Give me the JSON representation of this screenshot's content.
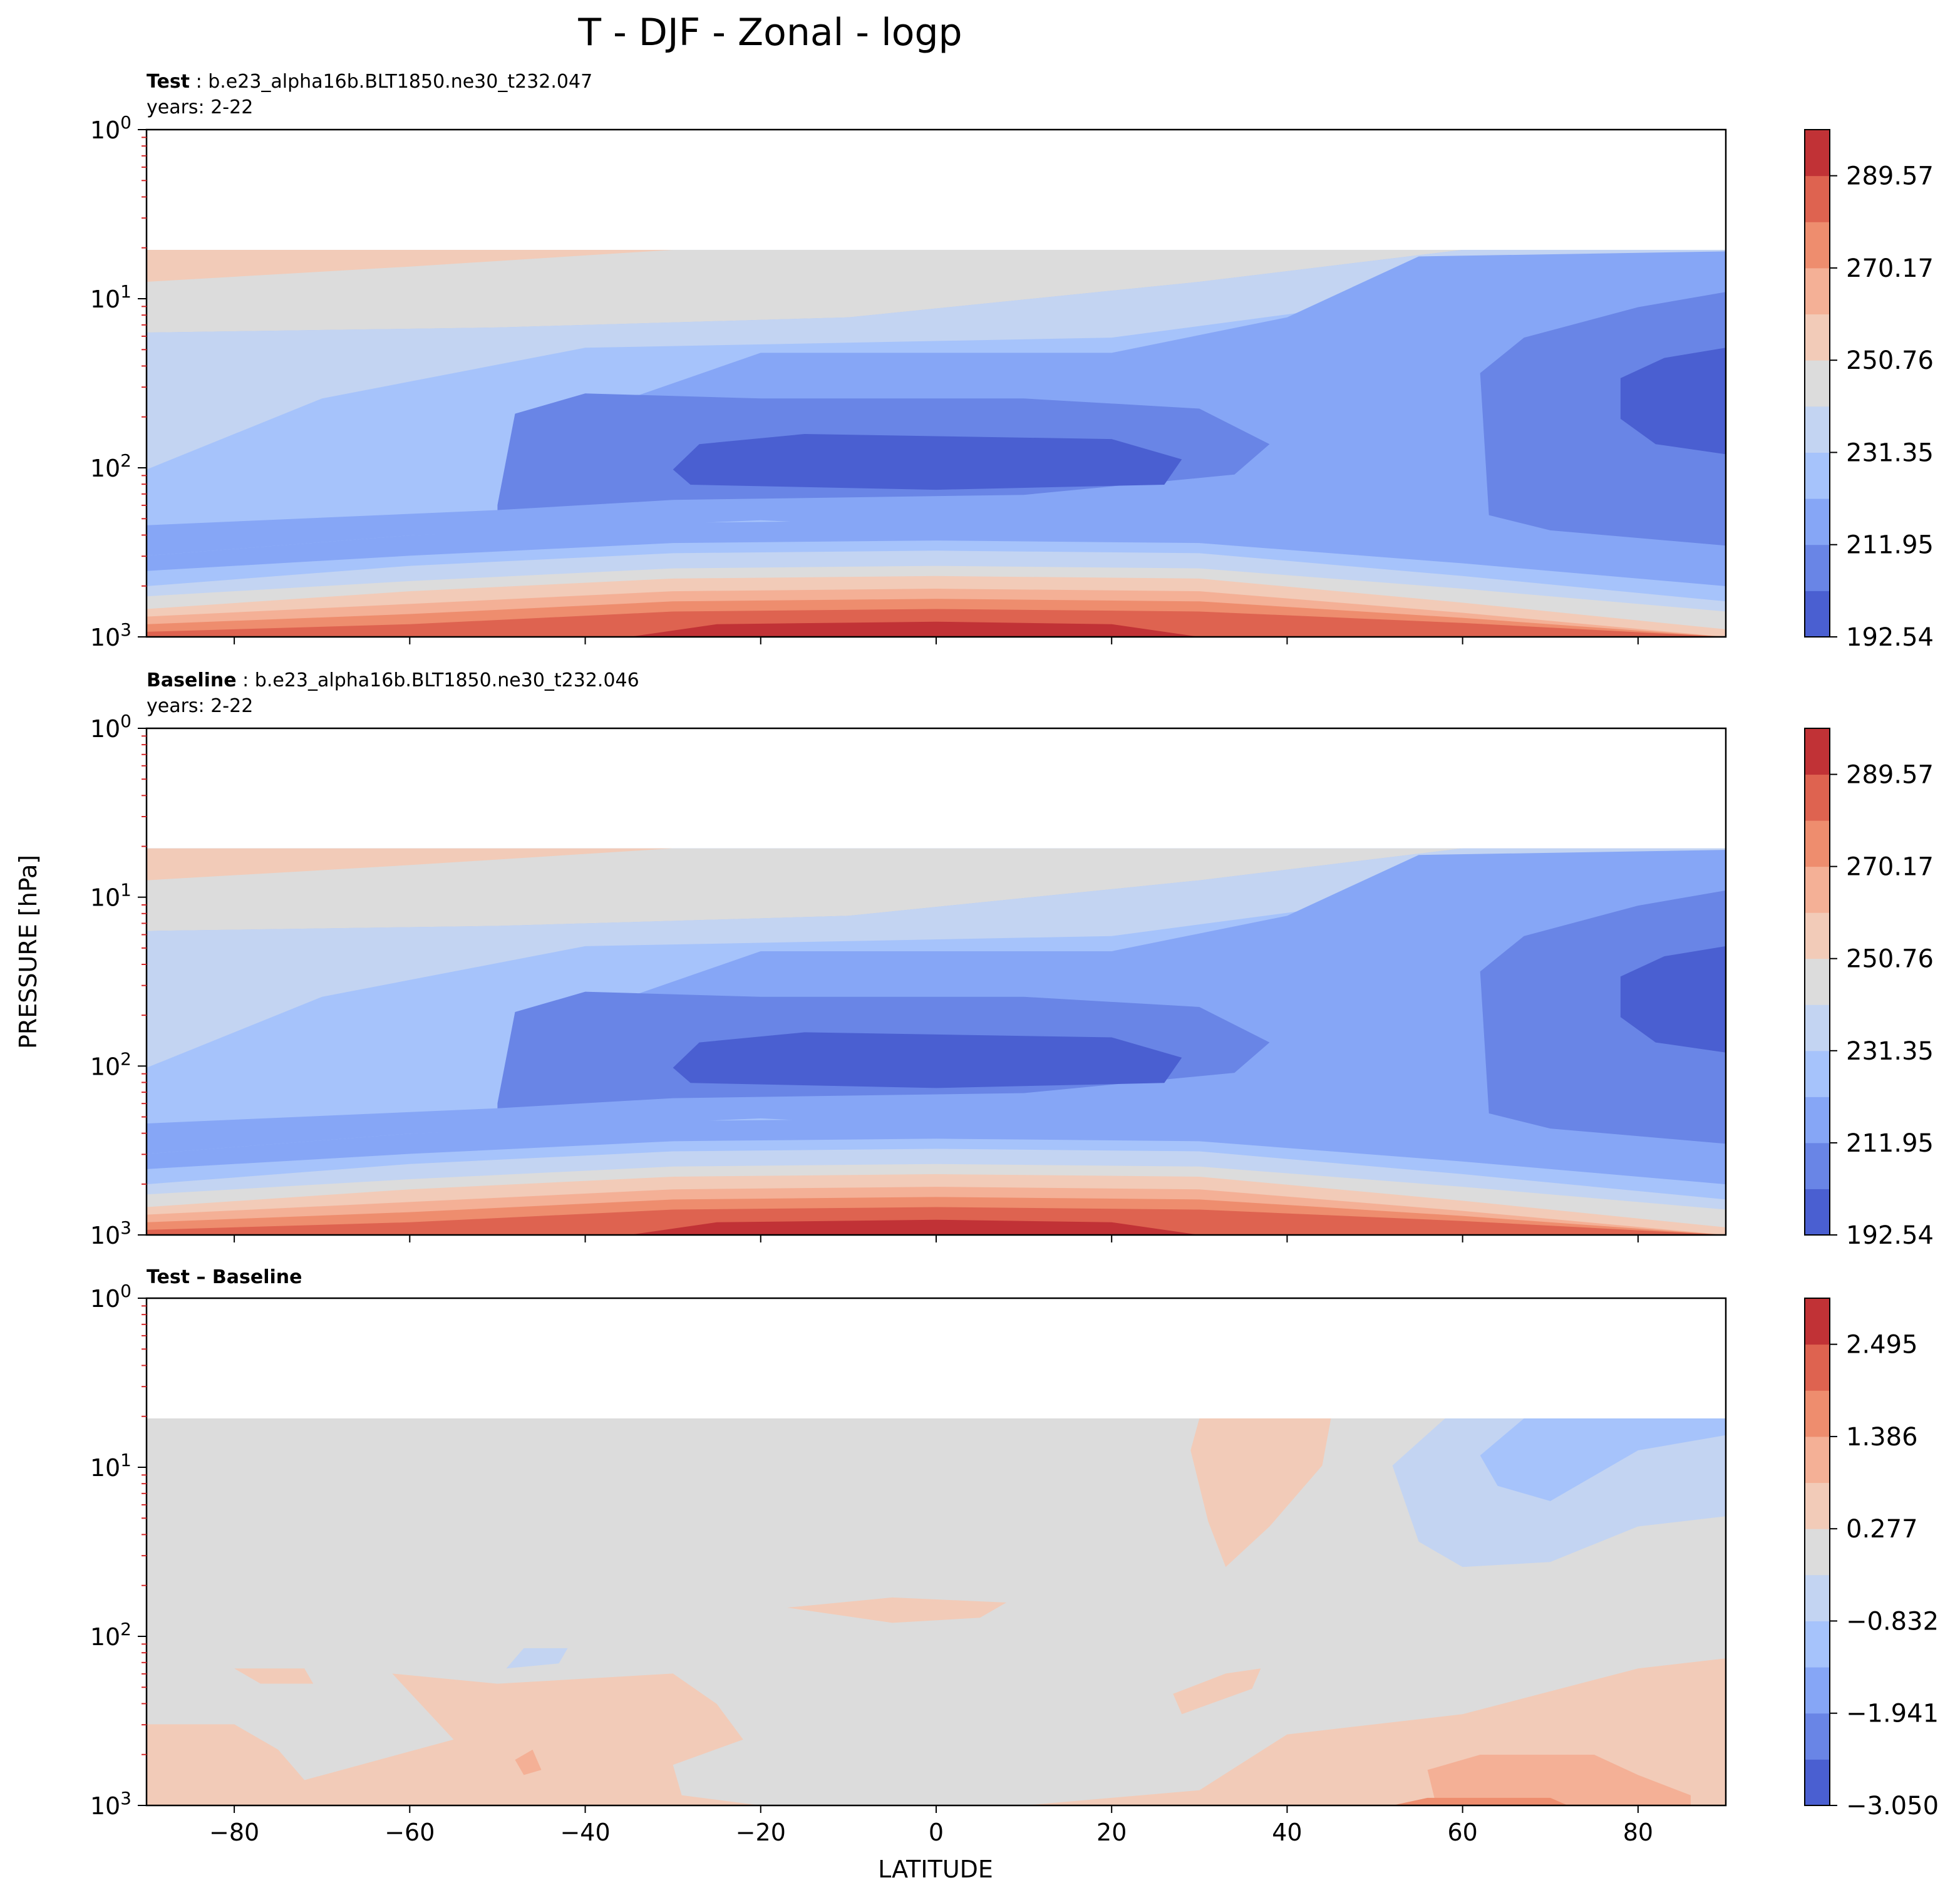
{
  "figure": {
    "title": "T - DJF - Zonal - logp",
    "xlabel": "LATITUDE",
    "ylabel": "PRESSURE [hPa]"
  },
  "colors": {
    "levels": [
      "#4a5fd1",
      "#6985e6",
      "#86a6f6",
      "#a6c3fb",
      "#c3d4f2",
      "#dcdcdc",
      "#f2cbb8",
      "#f4b096",
      "#ee8d6e",
      "#de6350",
      "#c13236"
    ]
  },
  "chart_data": [
    {
      "type": "contour",
      "id": "test",
      "title_bold": "Test",
      "title_rest": ": b.e23_alpha16b.BLT1850.ne30_t232.047",
      "subtitle": "years: 2-22",
      "xlim": [
        -90,
        90
      ],
      "ylim_hPa": [
        1000,
        1
      ],
      "y_scale": "log",
      "x_ticks": [
        -80,
        -60,
        -40,
        -20,
        0,
        20,
        40,
        60,
        80
      ],
      "y_ticks": [
        "10^3",
        "10^2",
        "10^1",
        "10^0"
      ],
      "colorbar_ticks": [
        "192.54",
        "211.95",
        "231.35",
        "250.76",
        "270.17",
        "289.57"
      ],
      "colorbar_range": [
        192.54,
        299.3
      ],
      "grid": false
    },
    {
      "type": "contour",
      "id": "baseline",
      "title_bold": "Baseline",
      "title_rest": ": b.e23_alpha16b.BLT1850.ne30_t232.046",
      "subtitle": "years: 2-22",
      "xlim": [
        -90,
        90
      ],
      "ylim_hPa": [
        1000,
        1
      ],
      "y_scale": "log",
      "x_ticks": [
        -80,
        -60,
        -40,
        -20,
        0,
        20,
        40,
        60,
        80
      ],
      "y_ticks": [
        "10^3",
        "10^2",
        "10^1",
        "10^0"
      ],
      "colorbar_ticks": [
        "192.54",
        "211.95",
        "231.35",
        "250.76",
        "270.17",
        "289.57"
      ],
      "colorbar_range": [
        192.54,
        299.3
      ],
      "grid": false
    },
    {
      "type": "contour",
      "id": "diff",
      "title_bold": "Test – Baseline",
      "title_rest": "",
      "subtitle": "",
      "xlim": [
        -90,
        90
      ],
      "ylim_hPa": [
        1000,
        1
      ],
      "y_scale": "log",
      "x_ticks": [
        -80,
        -60,
        -40,
        -20,
        0,
        20,
        40,
        60,
        80
      ],
      "y_ticks": [
        "10^3",
        "10^2",
        "10^1",
        "10^0"
      ],
      "colorbar_ticks": [
        "−3.050",
        "−1.941",
        "−0.832",
        "0.277",
        "1.386",
        "2.495"
      ],
      "colorbar_range": [
        -3.05,
        3.05
      ],
      "grid": false
    }
  ]
}
